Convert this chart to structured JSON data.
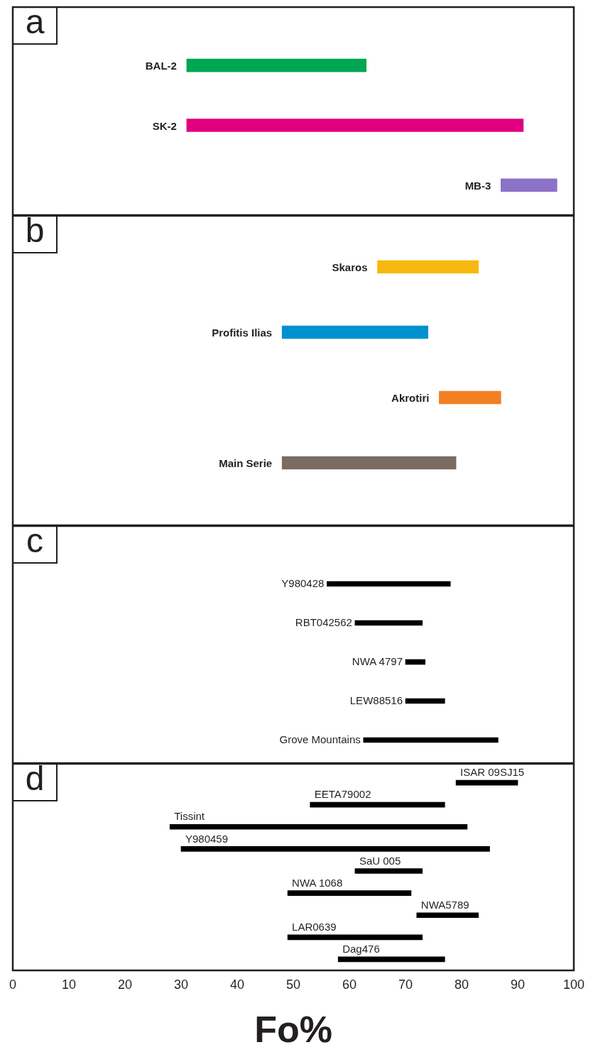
{
  "chart_data": [
    {
      "type": "bar",
      "title": "a",
      "orientation": "horizontal",
      "categories": [
        "BAL-2",
        "SK-2",
        "MB-3"
      ],
      "base": [
        31,
        31,
        87
      ],
      "values": [
        32,
        60,
        10
      ],
      "colors": [
        "#00a651",
        "#e0007f",
        "#8c72c8"
      ],
      "xlim": [
        0,
        100
      ],
      "tick_labels": false,
      "grid": false,
      "legend": false
    },
    {
      "type": "bar",
      "title": "b",
      "orientation": "horizontal",
      "categories": [
        "Skaros",
        "Profitis Ilias",
        "Akrotiri",
        "Main Serie"
      ],
      "base": [
        65,
        48,
        76,
        48
      ],
      "values": [
        18,
        26,
        11,
        31
      ],
      "colors": [
        "#f7b90f",
        "#0090cf",
        "#f37f21",
        "#7a6b63"
      ],
      "xlim": [
        0,
        100
      ],
      "tick_labels": false,
      "grid": false,
      "legend": false
    },
    {
      "type": "bar",
      "title": "c",
      "orientation": "horizontal",
      "categories": [
        "Y980428",
        "RBT042562",
        "NWA 4797",
        "LEW88516",
        "Grove Mountains"
      ],
      "base": [
        56,
        61,
        70,
        70,
        62.5
      ],
      "values": [
        22,
        12,
        3.5,
        7,
        24
      ],
      "colors": [
        "#000000",
        "#000000",
        "#000000",
        "#000000",
        "#000000"
      ],
      "xlim": [
        0,
        100
      ],
      "tick_labels": false,
      "grid": false,
      "legend": false
    },
    {
      "type": "bar",
      "title": "d",
      "xlabel": "Fo%",
      "orientation": "horizontal",
      "categories": [
        "ISAR 09SJ15",
        "EETA79002",
        "Tissint",
        "Y980459",
        "SaU 005",
        "NWA 1068",
        "NWA5789",
        "LAR0639",
        "Dag476"
      ],
      "base": [
        79,
        53,
        28,
        30,
        61,
        49,
        72,
        49,
        58
      ],
      "values": [
        11,
        24,
        53,
        55,
        12,
        22,
        11,
        24,
        19
      ],
      "colors": [
        "#000000",
        "#000000",
        "#000000",
        "#000000",
        "#000000",
        "#000000",
        "#000000",
        "#000000",
        "#000000"
      ],
      "xlim": [
        0,
        100
      ],
      "xticks": [
        0,
        10,
        20,
        30,
        40,
        50,
        60,
        70,
        80,
        90,
        100
      ],
      "tick_labels": "x",
      "grid": false,
      "legend": false
    }
  ]
}
